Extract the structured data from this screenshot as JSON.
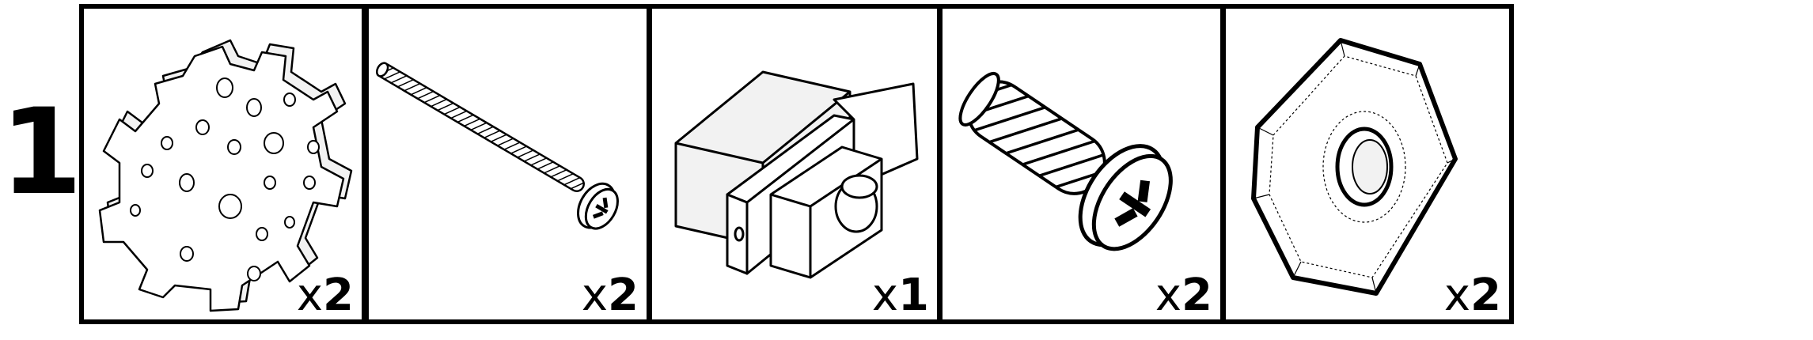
{
  "step": {
    "number": "1."
  },
  "parts": [
    {
      "name": "servo-horn-disc",
      "qty_prefix": "x",
      "qty_value": "2"
    },
    {
      "name": "long-screw",
      "qty_prefix": "x",
      "qty_value": "2"
    },
    {
      "name": "servo-motor",
      "qty_prefix": "x",
      "qty_value": "1"
    },
    {
      "name": "short-screw",
      "qty_prefix": "x",
      "qty_value": "2"
    },
    {
      "name": "hex-nut",
      "qty_prefix": "x",
      "qty_value": "2"
    }
  ],
  "colors": {
    "ink": "#000000",
    "background": "#ffffff",
    "shade": "#f2f2f2"
  }
}
